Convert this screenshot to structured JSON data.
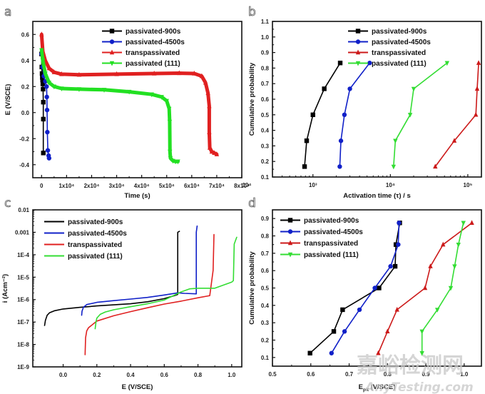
{
  "figure": {
    "watermark_cn": "嘉峪检测网",
    "watermark_en": "AnyTesting.com"
  },
  "chart_data": [
    {
      "id": "a",
      "panel_label": "a",
      "type": "line",
      "title": "",
      "xlabel": "Time (s)",
      "ylabel": "E (V/SCE)",
      "xlim": [
        -3500,
        80000
      ],
      "ylim": [
        -0.5,
        0.7
      ],
      "xscale": "linear",
      "yscale": "linear",
      "xticks": [
        0,
        10000,
        20000,
        30000,
        40000,
        50000,
        60000,
        70000,
        80000
      ],
      "xtick_labels": [
        "0",
        "1x10⁴",
        "2x10⁴",
        "3x10⁴",
        "4x10⁴",
        "5x10⁴",
        "6x10⁴",
        "7x10⁴",
        "8x10⁴"
      ],
      "yticks": [
        -0.4,
        -0.2,
        0.0,
        0.2,
        0.4,
        0.6
      ],
      "ytick_labels": [
        "-0.4",
        "-0.2",
        "0.0",
        "0.2",
        "0.4",
        "0.6"
      ],
      "legend": "top-center",
      "grid": false,
      "series": [
        {
          "name": "passivated-900s",
          "color": "#000000",
          "marker": "square",
          "x": [
            0,
            100,
            200,
            300,
            400,
            500,
            600,
            700,
            700,
            700
          ],
          "y": [
            0.45,
            0.35,
            0.3,
            0.27,
            0.25,
            0.22,
            0.18,
            0.08,
            -0.05,
            -0.31
          ]
        },
        {
          "name": "passivated-4500s",
          "color": "#1020c8",
          "marker": "circle",
          "x": [
            0,
            400,
            900,
            1500,
            2000,
            2100,
            2200,
            2300,
            2500,
            2800,
            3000
          ],
          "y": [
            0.45,
            0.35,
            0.28,
            0.24,
            0.2,
            0.12,
            0.02,
            -0.15,
            -0.29,
            -0.33,
            -0.35
          ]
        },
        {
          "name": "transpassivated",
          "color": "#e02020",
          "marker": "triangle-up",
          "x": [
            0,
            500,
            1500,
            3000,
            5000,
            8000,
            15000,
            30000,
            45000,
            55000,
            61000,
            64000,
            65500,
            66500,
            67000,
            67000,
            67200,
            68000,
            69000,
            70000
          ],
          "y": [
            0.6,
            0.47,
            0.4,
            0.34,
            0.31,
            0.295,
            0.29,
            0.295,
            0.3,
            0.303,
            0.3,
            0.28,
            0.23,
            0.15,
            0.05,
            -0.15,
            -0.27,
            -0.3,
            -0.31,
            -0.32
          ]
        },
        {
          "name": "passivated (111)",
          "color": "#22e022",
          "marker": "triangle-down",
          "x": [
            0,
            500,
            1500,
            3000,
            5000,
            8000,
            15000,
            25000,
            35000,
            44000,
            48000,
            50000,
            51000,
            51200,
            51300,
            51500,
            52500,
            53500,
            54500
          ],
          "y": [
            0.48,
            0.4,
            0.3,
            0.23,
            0.2,
            0.185,
            0.18,
            0.175,
            0.16,
            0.14,
            0.12,
            0.09,
            0.03,
            -0.07,
            -0.3,
            -0.35,
            -0.37,
            -0.375,
            -0.375
          ]
        }
      ]
    },
    {
      "id": "b",
      "panel_label": "b",
      "type": "line",
      "title": "",
      "xlabel": "Activation time (τ) / s",
      "ylabel": "Cumulative probability",
      "xlim": [
        300,
        150000
      ],
      "ylim": [
        0.1,
        1.1
      ],
      "xscale": "log",
      "yscale": "linear",
      "xticks": [
        1000,
        10000,
        100000
      ],
      "xtick_labels": [
        "10³",
        "10⁴",
        "10⁵"
      ],
      "yticks": [
        0.1,
        0.2,
        0.3,
        0.4,
        0.5,
        0.6,
        0.7,
        0.8,
        0.9,
        1.0,
        1.1
      ],
      "ytick_labels": [
        "0.1",
        "0.2",
        "0.3",
        "0.4",
        "0.5",
        "0.6",
        "0.7",
        "0.8",
        "0.9",
        "1.0",
        "1.1"
      ],
      "extra_left_label": "10⁴",
      "legend": "top-center",
      "grid": false,
      "series": [
        {
          "name": "passivated-900s",
          "color": "#000000",
          "marker": "square",
          "x": [
            780,
            830,
            1000,
            1400,
            2250
          ],
          "y": [
            0.167,
            0.333,
            0.5,
            0.667,
            0.833
          ]
        },
        {
          "name": "passivated-4500s",
          "color": "#1020c8",
          "marker": "circle",
          "x": [
            2220,
            2300,
            2550,
            3000,
            5400
          ],
          "y": [
            0.167,
            0.333,
            0.5,
            0.667,
            0.833
          ]
        },
        {
          "name": "transpassivated",
          "color": "#cc1a1a",
          "marker": "triangle-up",
          "x": [
            38000,
            67000,
            127000,
            132000,
            138000
          ],
          "y": [
            0.167,
            0.333,
            0.5,
            0.667,
            0.833
          ]
        },
        {
          "name": "passivated (111)",
          "color": "#33dd33",
          "marker": "triangle-down",
          "x": [
            11000,
            11600,
            18000,
            20000,
            54000
          ],
          "y": [
            0.167,
            0.333,
            0.5,
            0.667,
            0.833
          ]
        }
      ]
    },
    {
      "id": "c",
      "panel_label": "c",
      "type": "line",
      "title": "",
      "xlabel": "E (V/SCE)",
      "ylabel": "i (Acm⁻²)",
      "xlim": [
        -0.18,
        1.06
      ],
      "ylim": [
        1e-09,
        0.01
      ],
      "xscale": "linear",
      "yscale": "log",
      "xticks": [
        0.0,
        0.2,
        0.4,
        0.6,
        0.8,
        1.0
      ],
      "xtick_labels": [
        "0.0",
        "0.2",
        "0.4",
        "0.6",
        "0.8",
        "1.0"
      ],
      "yticks": [
        1e-09,
        1e-08,
        1e-07,
        1e-06,
        1e-05,
        0.0001,
        0.001,
        0.01
      ],
      "ytick_labels": [
        "1E-9",
        "1E-8",
        "1E-7",
        "1E-6",
        "1E-5",
        "1E-4",
        "0.001",
        "0.01"
      ],
      "legend": "top-left",
      "grid": false,
      "series": [
        {
          "name": "passivated-900s",
          "color": "#000000",
          "marker": "none",
          "x": [
            -0.11,
            -0.105,
            -0.095,
            -0.08,
            -0.05,
            0.0,
            0.1,
            0.2,
            0.3,
            0.4,
            0.5,
            0.6,
            0.66,
            0.68,
            0.68,
            0.69
          ],
          "y": [
            7e-08,
            1.2e-07,
            2e-07,
            2.6e-07,
            3.2e-07,
            3.8e-07,
            4.5e-07,
            5.2e-07,
            5.8e-07,
            6.5e-07,
            8e-07,
            1.1e-06,
            1.5e-06,
            1.7e-06,
            0.001,
            0.0011
          ]
        },
        {
          "name": "passivated-4500s",
          "color": "#1020c8",
          "marker": "none",
          "x": [
            0.11,
            0.112,
            0.12,
            0.14,
            0.2,
            0.3,
            0.4,
            0.5,
            0.6,
            0.68,
            0.72,
            0.79,
            0.79,
            0.795
          ],
          "y": [
            2e-07,
            3e-07,
            4.5e-07,
            6e-07,
            7.5e-07,
            9e-07,
            1.05e-06,
            1.25e-06,
            1.6e-06,
            2e-06,
            1.9e-06,
            1.8e-06,
            0.001,
            0.0019
          ]
        },
        {
          "name": "transpassivated",
          "color": "#e02020",
          "marker": "none",
          "x": [
            0.13,
            0.133,
            0.14,
            0.15,
            0.2,
            0.3,
            0.4,
            0.5,
            0.6,
            0.7,
            0.8,
            0.86,
            0.87,
            0.89,
            0.895
          ],
          "y": [
            3.5e-09,
            2e-08,
            4e-08,
            5.5e-08,
            1.1e-07,
            1.9e-07,
            2.9e-07,
            4.3e-07,
            6.3e-07,
            8.5e-07,
            1.2e-06,
            1.45e-06,
            1.5e-06,
            2e-05,
            0.0008
          ]
        },
        {
          "name": "passivated (111)",
          "color": "#33dd33",
          "marker": "none",
          "x": [
            0.19,
            0.195,
            0.2,
            0.22,
            0.25,
            0.3,
            0.4,
            0.5,
            0.6,
            0.7,
            0.75,
            0.8,
            0.9,
            1.0,
            1.01,
            1.015,
            1.03
          ],
          "y": [
            5e-08,
            1e-07,
            1.5e-07,
            2.2e-07,
            2.8e-07,
            3.5e-07,
            4.8e-07,
            6.5e-07,
            9.5e-07,
            2.2e-06,
            3e-06,
            3.2e-06,
            3.2e-06,
            6e-06,
            7e-06,
            0.0003,
            0.0006
          ]
        }
      ]
    },
    {
      "id": "d",
      "panel_label": "d",
      "type": "line",
      "title": "",
      "xlabel": "E_pit (V/SCE)",
      "xlabel_main": "E",
      "xlabel_sub": "pit",
      "xlabel_rest": " (V/SCE)",
      "ylabel": "Cumulative probability",
      "xlim": [
        0.5,
        1.045
      ],
      "ylim": [
        0.05,
        0.95
      ],
      "xscale": "linear",
      "yscale": "linear",
      "xticks": [
        0.5,
        0.6,
        0.7,
        0.8,
        0.9,
        1.0
      ],
      "xtick_labels": [
        "0.5",
        "0.6",
        "0.7",
        "0.8",
        "0.9",
        "1.0"
      ],
      "yticks": [
        0.1,
        0.2,
        0.3,
        0.4,
        0.5,
        0.6,
        0.7,
        0.8,
        0.9
      ],
      "ytick_labels": [
        "0.1",
        "0.2",
        "0.3",
        "0.4",
        "0.5",
        "0.6",
        "0.7",
        "0.8",
        "0.9"
      ],
      "legend": "top-left",
      "grid": false,
      "series": [
        {
          "name": "passivated-900s",
          "color": "#000000",
          "marker": "square",
          "x": [
            0.598,
            0.66,
            0.683,
            0.778,
            0.82,
            0.822,
            0.832
          ],
          "y": [
            0.125,
            0.25,
            0.375,
            0.5,
            0.625,
            0.75,
            0.875
          ]
        },
        {
          "name": "passivated-4500s",
          "color": "#1020c8",
          "marker": "circle",
          "x": [
            0.654,
            0.688,
            0.727,
            0.767,
            0.808,
            0.828,
            0.83
          ],
          "y": [
            0.125,
            0.25,
            0.375,
            0.5,
            0.625,
            0.75,
            0.875
          ]
        },
        {
          "name": "transpassivated",
          "color": "#cc1a1a",
          "marker": "triangle-up",
          "x": [
            0.776,
            0.8,
            0.825,
            0.898,
            0.912,
            0.945,
            1.02
          ],
          "y": [
            0.125,
            0.25,
            0.375,
            0.5,
            0.625,
            0.75,
            0.875
          ]
        },
        {
          "name": "passivated (111)",
          "color": "#33dd33",
          "marker": "triangle-down",
          "x": [
            0.89,
            0.89,
            0.93,
            0.965,
            0.975,
            0.985,
            0.998
          ],
          "y": [
            0.125,
            0.25,
            0.375,
            0.5,
            0.625,
            0.75,
            0.875
          ]
        }
      ]
    }
  ]
}
